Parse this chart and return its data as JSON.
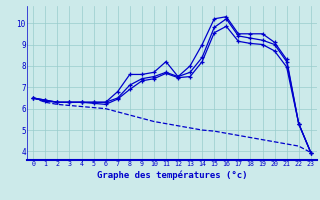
{
  "xlabel": "Graphe des températures (°c)",
  "bg_color": "#cceaea",
  "line_color": "#0000cc",
  "grid_color": "#99cccc",
  "hours": [
    0,
    1,
    2,
    3,
    4,
    5,
    6,
    7,
    8,
    9,
    10,
    11,
    12,
    13,
    14,
    15,
    16,
    17,
    18,
    19,
    20,
    21,
    22,
    23
  ],
  "line1": [
    6.5,
    6.4,
    6.3,
    6.3,
    6.3,
    6.3,
    6.3,
    6.8,
    7.6,
    7.6,
    7.7,
    8.2,
    7.5,
    8.0,
    9.0,
    10.2,
    10.3,
    9.5,
    9.5,
    9.5,
    9.1,
    8.3,
    5.3,
    3.95
  ],
  "line2": [
    6.5,
    6.4,
    6.3,
    6.3,
    6.3,
    6.3,
    6.3,
    6.5,
    7.1,
    7.4,
    7.5,
    7.7,
    7.5,
    7.7,
    8.4,
    9.8,
    10.2,
    9.4,
    9.3,
    9.2,
    9.0,
    8.2,
    5.3,
    3.95
  ],
  "line3": [
    6.5,
    6.35,
    6.3,
    6.3,
    6.3,
    6.25,
    6.2,
    6.45,
    6.9,
    7.3,
    7.4,
    7.65,
    7.45,
    7.5,
    8.2,
    9.55,
    9.85,
    9.15,
    9.05,
    9.0,
    8.7,
    7.95,
    5.3,
    3.95
  ],
  "line4": [
    6.5,
    6.3,
    6.2,
    6.15,
    6.1,
    6.05,
    6.0,
    5.85,
    5.7,
    5.55,
    5.4,
    5.3,
    5.2,
    5.1,
    5.0,
    4.95,
    4.85,
    4.75,
    4.65,
    4.55,
    4.45,
    4.35,
    4.25,
    3.95
  ],
  "ylim": [
    3.6,
    10.8
  ],
  "yticks": [
    4,
    5,
    6,
    7,
    8,
    9,
    10
  ],
  "xticks": [
    0,
    1,
    2,
    3,
    4,
    5,
    6,
    7,
    8,
    9,
    10,
    11,
    12,
    13,
    14,
    15,
    16,
    17,
    18,
    19,
    20,
    21,
    22,
    23
  ]
}
